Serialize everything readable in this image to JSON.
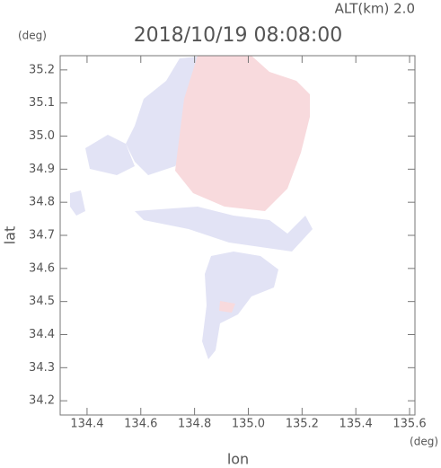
{
  "chart_data": {
    "type": "field",
    "title": "2018/10/19 08:08:00",
    "subtitle": "ALT(km) 2.0",
    "x_label": "lon",
    "x_unit": "(deg)",
    "y_label": "lat",
    "y_unit": "(deg)",
    "xlim": [
      134.3,
      135.62
    ],
    "ylim": [
      34.157,
      35.243
    ],
    "xticks": [
      134.4,
      134.6,
      134.8,
      {
        "value": 135,
        "label": "135.0"
      },
      135.2,
      135.4,
      135.6
    ],
    "yticks": [
      34.2,
      34.3,
      34.4,
      34.5,
      34.6,
      34.7,
      34.8,
      34.9,
      {
        "value": 35,
        "label": "35.0"
      },
      35.1,
      35.2
    ]
  }
}
